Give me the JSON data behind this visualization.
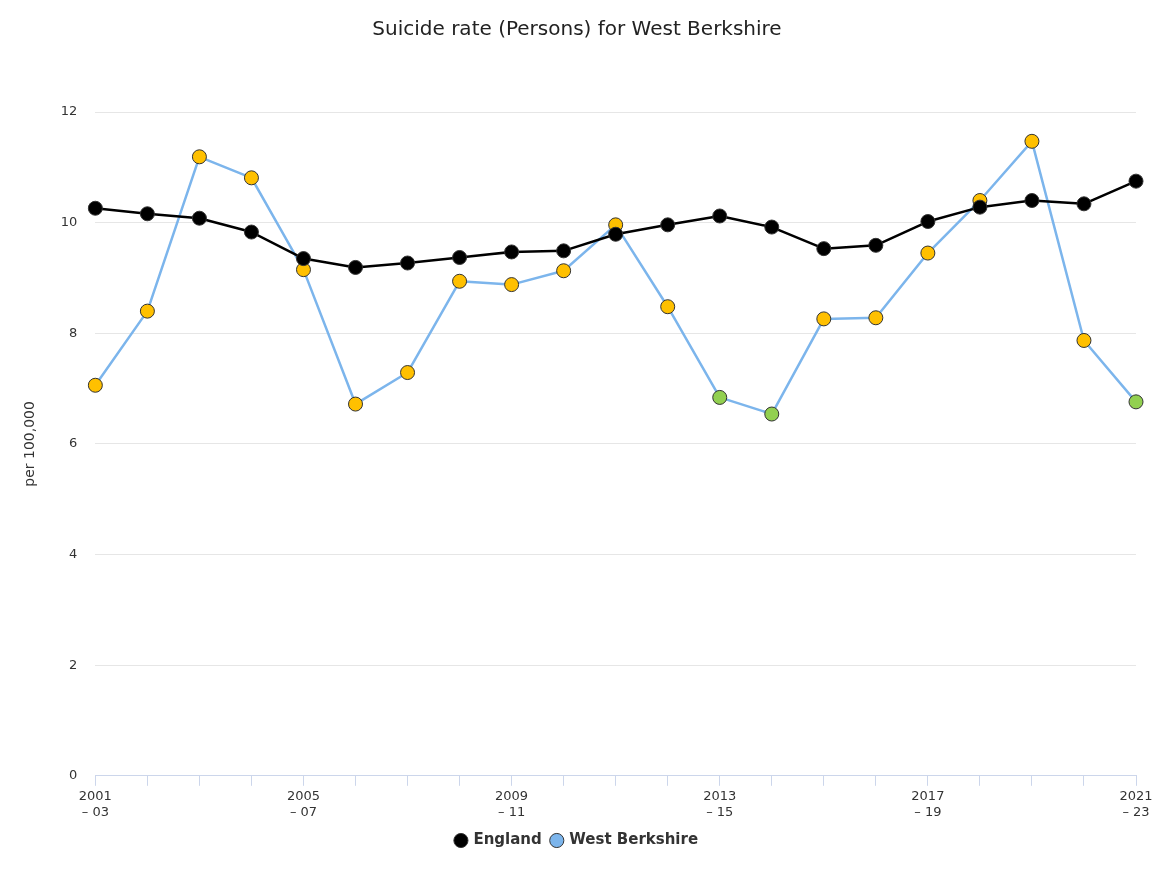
{
  "chart_data": {
    "type": "line",
    "title": "Suicide rate (Persons) for West Berkshire",
    "ylabel": "per 100,000",
    "categories": [
      "2001\n– 03",
      null,
      null,
      null,
      "2005\n– 07",
      null,
      null,
      null,
      "2009\n– 11",
      null,
      null,
      null,
      "2013\n– 15",
      null,
      null,
      null,
      "2017\n– 19",
      null,
      null,
      null,
      "2021\n– 23"
    ],
    "series": [
      {
        "name": "England",
        "color": "#000000",
        "values": [
          10.26,
          10.16,
          10.08,
          9.83,
          9.35,
          9.19,
          9.27,
          9.37,
          9.47,
          9.49,
          9.79,
          9.96,
          10.12,
          9.92,
          9.53,
          9.59,
          10.02,
          10.28,
          10.4,
          10.34,
          10.75
        ]
      },
      {
        "name": "West Berkshire",
        "color": "#7cb5ec",
        "colors": [
          "#ffc000",
          "#ffc000",
          "#ffc000",
          "#ffc000",
          "#ffc000",
          "#ffc000",
          "#ffc000",
          "#ffc000",
          "#ffc000",
          "#ffc000",
          "#ffc000",
          "#ffc000",
          "#92d050",
          "#92d050",
          "#ffc000",
          "#ffc000",
          "#ffc000",
          "#ffc000",
          "#ffc000",
          "#ffc000",
          "#92d050"
        ],
        "values": [
          7.06,
          8.4,
          11.19,
          10.81,
          9.15,
          6.72,
          7.29,
          8.94,
          8.88,
          9.13,
          9.96,
          8.48,
          6.84,
          6.54,
          8.26,
          8.28,
          9.45,
          10.4,
          11.47,
          7.87,
          6.76
        ]
      }
    ],
    "ylim": [
      0,
      12
    ],
    "yticks": [
      0,
      2,
      4,
      6,
      8,
      10,
      12
    ],
    "grid": "y",
    "legend": "bottom",
    "marker": "circle",
    "line_style": "solid"
  }
}
